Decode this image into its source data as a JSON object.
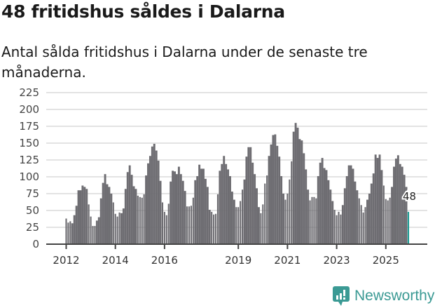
{
  "header": {
    "title": "48 fritidshus såldes i Dalarna",
    "subtitle": "Antal sålda fritidshus i Dalarna under de senaste tre månaderna."
  },
  "branding": {
    "logo_text": "Newsworthy",
    "logo_icon": "bar-chart-speech-bubble-icon"
  },
  "colors": {
    "bar": "#6e6d72",
    "highlight": "#1a9b92",
    "grid": "#e3e3e3",
    "axis": "#444444",
    "brand": "#3b9a94"
  },
  "annotation": {
    "label": "48"
  },
  "chart_data": {
    "type": "bar",
    "title": "48 fritidshus såldes i Dalarna",
    "subtitle": "Antal sålda fritidshus i Dalarna under de senaste tre månaderna.",
    "xlabel": "",
    "ylabel": "",
    "ylim": [
      0,
      225
    ],
    "yticks": [
      0,
      25,
      50,
      75,
      100,
      125,
      150,
      175,
      200,
      225
    ],
    "xtick_labels": [
      "2012",
      "2014",
      "2016",
      "2019",
      "2021",
      "2023",
      "2025"
    ],
    "xtick_positions": [
      0,
      24,
      48,
      84,
      108,
      132,
      156
    ],
    "grid": true,
    "legend": null,
    "start": "2012-01",
    "frequency": "monthly",
    "highlight_last": true,
    "last_value_label": "48",
    "values": [
      38,
      32,
      34,
      31,
      43,
      57,
      80,
      80,
      87,
      85,
      82,
      59,
      41,
      27,
      27,
      35,
      40,
      68,
      91,
      104,
      89,
      85,
      75,
      62,
      45,
      41,
      47,
      46,
      53,
      82,
      107,
      117,
      103,
      86,
      82,
      72,
      70,
      69,
      74,
      102,
      120,
      131,
      145,
      149,
      139,
      124,
      94,
      62,
      48,
      43,
      60,
      93,
      109,
      108,
      104,
      115,
      104,
      94,
      79,
      56,
      56,
      57,
      69,
      95,
      101,
      118,
      112,
      112,
      97,
      85,
      51,
      48,
      44,
      45,
      74,
      109,
      119,
      131,
      119,
      111,
      101,
      78,
      66,
      55,
      55,
      64,
      81,
      96,
      130,
      144,
      144,
      121,
      104,
      83,
      55,
      46,
      59,
      90,
      102,
      131,
      148,
      162,
      163,
      146,
      130,
      101,
      75,
      66,
      75,
      96,
      123,
      167,
      180,
      173,
      156,
      154,
      135,
      111,
      81,
      65,
      70,
      70,
      68,
      101,
      121,
      128,
      113,
      110,
      95,
      81,
      64,
      51,
      43,
      48,
      44,
      58,
      83,
      101,
      117,
      117,
      112,
      93,
      80,
      68,
      58,
      47,
      55,
      66,
      75,
      90,
      105,
      133,
      128,
      133,
      110,
      87,
      67,
      65,
      69,
      85,
      115,
      127,
      132,
      119,
      115,
      103,
      85,
      48
    ]
  }
}
